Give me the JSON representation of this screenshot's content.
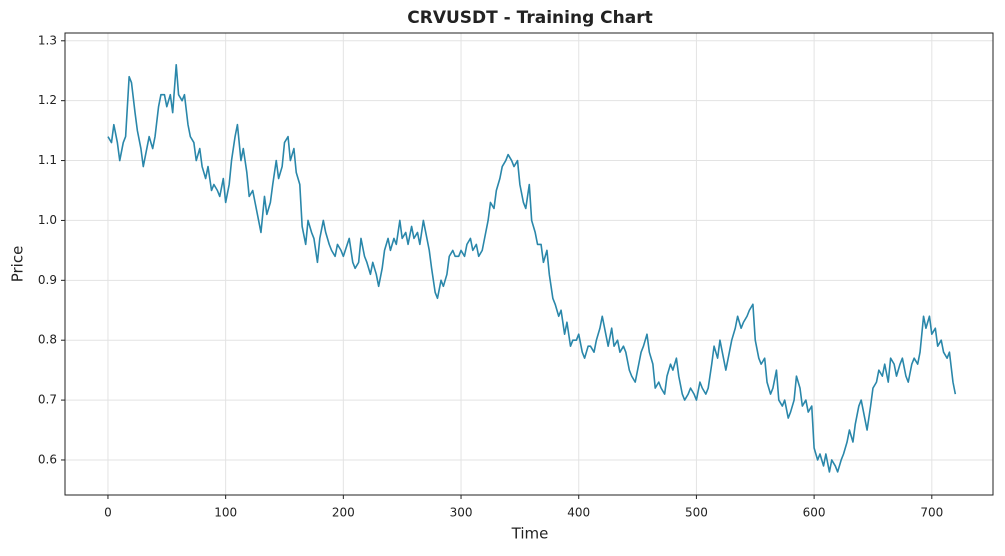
{
  "chart_data": {
    "type": "line",
    "title": "CRVUSDT - Training Chart",
    "x_label": "Time",
    "y_label": "Price",
    "x": [
      0,
      3,
      5,
      8,
      10,
      13,
      15,
      18,
      20,
      23,
      25,
      28,
      30,
      33,
      35,
      38,
      40,
      43,
      45,
      48,
      50,
      53,
      55,
      58,
      60,
      63,
      65,
      68,
      70,
      73,
      75,
      78,
      80,
      83,
      85,
      88,
      90,
      93,
      95,
      98,
      100,
      103,
      105,
      108,
      110,
      113,
      115,
      118,
      120,
      123,
      125,
      128,
      130,
      133,
      135,
      138,
      140,
      143,
      145,
      148,
      150,
      153,
      155,
      158,
      160,
      163,
      165,
      168,
      170,
      173,
      175,
      178,
      180,
      183,
      185,
      188,
      190,
      193,
      195,
      198,
      200,
      205,
      208,
      210,
      213,
      215,
      218,
      220,
      223,
      225,
      228,
      230,
      233,
      235,
      238,
      240,
      243,
      245,
      248,
      250,
      253,
      255,
      258,
      260,
      263,
      265,
      268,
      270,
      273,
      275,
      278,
      280,
      283,
      285,
      288,
      290,
      293,
      295,
      298,
      300,
      303,
      305,
      308,
      310,
      313,
      315,
      318,
      320,
      323,
      325,
      328,
      330,
      333,
      335,
      338,
      340,
      343,
      345,
      348,
      350,
      353,
      355,
      358,
      360,
      363,
      365,
      368,
      370,
      373,
      375,
      378,
      380,
      383,
      385,
      388,
      390,
      393,
      395,
      398,
      400,
      403,
      405,
      408,
      410,
      413,
      415,
      418,
      420,
      423,
      425,
      428,
      430,
      433,
      435,
      438,
      440,
      443,
      445,
      448,
      450,
      453,
      455,
      458,
      460,
      463,
      465,
      468,
      470,
      473,
      475,
      478,
      480,
      483,
      485,
      488,
      490,
      493,
      495,
      498,
      500,
      503,
      505,
      508,
      510,
      513,
      515,
      518,
      520,
      523,
      525,
      528,
      530,
      533,
      535,
      538,
      540,
      543,
      545,
      548,
      550,
      553,
      555,
      558,
      560,
      563,
      565,
      568,
      570,
      573,
      575,
      578,
      580,
      583,
      585,
      588,
      590,
      593,
      595,
      598,
      600,
      603,
      605,
      608,
      610,
      613,
      615,
      618,
      620,
      623,
      625,
      628,
      630,
      633,
      635,
      638,
      640,
      643,
      645,
      648,
      650,
      653,
      655,
      658,
      660,
      663,
      665,
      668,
      670,
      673,
      675,
      678,
      680,
      683,
      685,
      688,
      690,
      693,
      695,
      698,
      700,
      703,
      705,
      708,
      710,
      713,
      715,
      718,
      720
    ],
    "series": [
      {
        "name": "CRVUSDT",
        "color": "#2a87aa",
        "values": [
          1.14,
          1.13,
          1.16,
          1.13,
          1.1,
          1.13,
          1.14,
          1.24,
          1.23,
          1.18,
          1.15,
          1.12,
          1.09,
          1.12,
          1.14,
          1.12,
          1.14,
          1.19,
          1.21,
          1.21,
          1.19,
          1.21,
          1.18,
          1.26,
          1.21,
          1.2,
          1.21,
          1.16,
          1.14,
          1.13,
          1.1,
          1.12,
          1.09,
          1.07,
          1.09,
          1.05,
          1.06,
          1.05,
          1.04,
          1.07,
          1.03,
          1.06,
          1.1,
          1.14,
          1.16,
          1.1,
          1.12,
          1.08,
          1.04,
          1.05,
          1.03,
          1.0,
          0.98,
          1.04,
          1.01,
          1.03,
          1.06,
          1.1,
          1.07,
          1.09,
          1.13,
          1.14,
          1.1,
          1.12,
          1.08,
          1.06,
          0.99,
          0.96,
          1.0,
          0.98,
          0.97,
          0.93,
          0.97,
          1.0,
          0.98,
          0.96,
          0.95,
          0.94,
          0.96,
          0.95,
          0.94,
          0.97,
          0.93,
          0.92,
          0.93,
          0.97,
          0.94,
          0.93,
          0.91,
          0.93,
          0.91,
          0.89,
          0.92,
          0.95,
          0.97,
          0.95,
          0.97,
          0.96,
          1.0,
          0.97,
          0.98,
          0.96,
          0.99,
          0.97,
          0.98,
          0.96,
          1.0,
          0.98,
          0.95,
          0.92,
          0.88,
          0.87,
          0.9,
          0.89,
          0.91,
          0.94,
          0.95,
          0.94,
          0.94,
          0.95,
          0.94,
          0.96,
          0.97,
          0.95,
          0.96,
          0.94,
          0.95,
          0.97,
          1.0,
          1.03,
          1.02,
          1.05,
          1.07,
          1.09,
          1.1,
          1.11,
          1.1,
          1.09,
          1.1,
          1.06,
          1.03,
          1.02,
          1.06,
          1.0,
          0.98,
          0.96,
          0.96,
          0.93,
          0.95,
          0.91,
          0.87,
          0.86,
          0.84,
          0.85,
          0.81,
          0.83,
          0.79,
          0.8,
          0.8,
          0.81,
          0.78,
          0.77,
          0.79,
          0.79,
          0.78,
          0.8,
          0.82,
          0.84,
          0.81,
          0.79,
          0.82,
          0.79,
          0.8,
          0.78,
          0.79,
          0.78,
          0.75,
          0.74,
          0.73,
          0.75,
          0.78,
          0.79,
          0.81,
          0.78,
          0.76,
          0.72,
          0.73,
          0.72,
          0.71,
          0.74,
          0.76,
          0.75,
          0.77,
          0.74,
          0.71,
          0.7,
          0.71,
          0.72,
          0.71,
          0.7,
          0.73,
          0.72,
          0.71,
          0.72,
          0.76,
          0.79,
          0.77,
          0.8,
          0.77,
          0.75,
          0.78,
          0.8,
          0.82,
          0.84,
          0.82,
          0.83,
          0.84,
          0.85,
          0.86,
          0.8,
          0.77,
          0.76,
          0.77,
          0.73,
          0.71,
          0.72,
          0.75,
          0.7,
          0.69,
          0.7,
          0.67,
          0.68,
          0.7,
          0.74,
          0.72,
          0.69,
          0.7,
          0.68,
          0.69,
          0.62,
          0.6,
          0.61,
          0.59,
          0.61,
          0.58,
          0.6,
          0.59,
          0.58,
          0.6,
          0.61,
          0.63,
          0.65,
          0.63,
          0.66,
          0.69,
          0.7,
          0.67,
          0.65,
          0.69,
          0.72,
          0.73,
          0.75,
          0.74,
          0.76,
          0.73,
          0.77,
          0.76,
          0.74,
          0.76,
          0.77,
          0.74,
          0.73,
          0.76,
          0.77,
          0.76,
          0.78,
          0.84,
          0.82,
          0.84,
          0.81,
          0.82,
          0.79,
          0.8,
          0.78,
          0.77,
          0.78,
          0.73,
          0.71
        ]
      }
    ],
    "xlim": [
      -36.5,
      752
    ],
    "ylim": [
      0.5415,
      1.313
    ],
    "xticks": [
      0,
      100,
      200,
      300,
      400,
      500,
      600,
      700
    ],
    "yticks": [
      0.6,
      0.7,
      0.8,
      0.9,
      {
        "value": 1,
        "label": "1.0"
      },
      1.1,
      1.2,
      1.3
    ],
    "grid": true
  }
}
